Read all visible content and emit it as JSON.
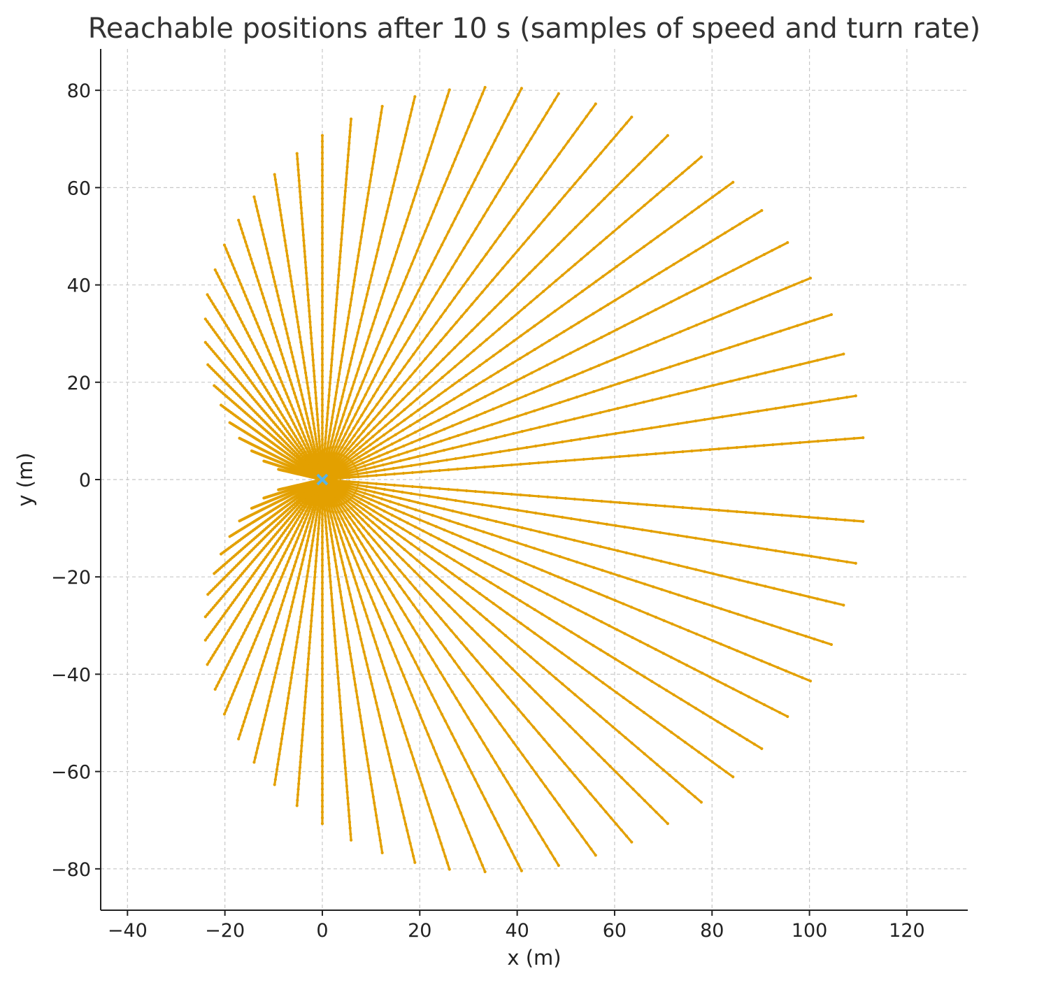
{
  "colors": {
    "ray": "#e3a000",
    "origin_marker": "#56b4e9",
    "grid": "#c7c7c7",
    "axis": "#222222"
  },
  "chart_data": {
    "type": "scatter",
    "title": "Reachable positions after 10 s (samples of speed and turn rate)",
    "xlabel": "x (m)",
    "ylabel": "y (m)",
    "xlim": [
      -45.5,
      132.5
    ],
    "ylim": [
      -88.5,
      88.5
    ],
    "x_ticks": [
      -40,
      -20,
      0,
      20,
      40,
      60,
      80,
      100,
      120
    ],
    "y_ticks": [
      -80,
      -60,
      -40,
      -20,
      0,
      20,
      40,
      60,
      80
    ],
    "x_tick_labels": [
      "−40",
      "−20",
      "0",
      "20",
      "40",
      "60",
      "80",
      "100",
      "120"
    ],
    "y_tick_labels": [
      "−80",
      "−60",
      "−40",
      "−20",
      "0",
      "20",
      "40",
      "60",
      "80"
    ],
    "grid": true,
    "grid_style": "dashed",
    "spines": "left-bottom",
    "series": [
      {
        "kind": "fan_endpoints",
        "marker": "dot",
        "color": "#e3a000",
        "samples_per_ray": 60,
        "endpoints_upper": [
          [
            111,
            8.6
          ],
          [
            109.5,
            17.2
          ],
          [
            107,
            25.8
          ],
          [
            104.5,
            33.9
          ],
          [
            100.2,
            41.4
          ],
          [
            95.5,
            48.7
          ],
          [
            90.2,
            55.3
          ],
          [
            84.3,
            61.1
          ],
          [
            77.8,
            66.3
          ],
          [
            70.9,
            70.7
          ],
          [
            63.5,
            74.5
          ],
          [
            56.1,
            77.2
          ],
          [
            48.5,
            79.3
          ],
          [
            40.9,
            80.4
          ],
          [
            33.4,
            80.6
          ],
          [
            26.1,
            80.1
          ],
          [
            19,
            78.7
          ],
          [
            12.3,
            76.7
          ],
          [
            5.9,
            74.1
          ],
          [
            0,
            70.7
          ],
          [
            -5.2,
            67
          ],
          [
            -9.8,
            62.7
          ],
          [
            -14,
            58.1
          ],
          [
            -17.2,
            53.3
          ],
          [
            -20.1,
            48.2
          ],
          [
            -22,
            43.1
          ],
          [
            -23.6,
            38
          ],
          [
            -24,
            33
          ],
          [
            -24,
            28.2
          ],
          [
            -23.5,
            23.6
          ],
          [
            -22.2,
            19.3
          ],
          [
            -20.8,
            15.3
          ],
          [
            -19,
            11.7
          ],
          [
            -17,
            8.5
          ],
          [
            -14.5,
            5.9
          ],
          [
            -12,
            3.8
          ],
          [
            -9,
            2.1
          ]
        ]
      },
      {
        "kind": "marker",
        "marker": "x",
        "color": "#56b4e9",
        "points": [
          [
            0,
            0
          ]
        ]
      }
    ]
  }
}
